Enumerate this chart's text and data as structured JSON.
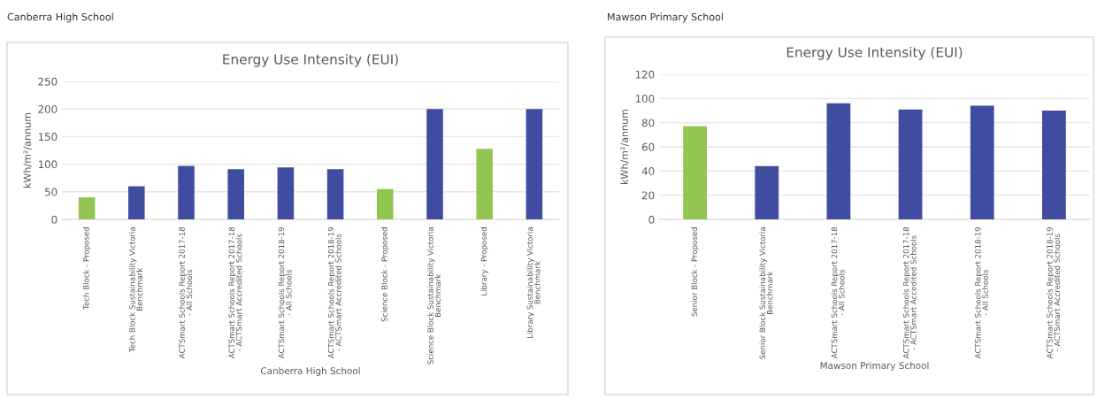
{
  "chart_data": [
    {
      "type": "bar",
      "subtitle": "Canberra High School",
      "title": "Energy Use Intensity (EUI)",
      "xlabel": "Canberra High School",
      "ylabel": "kWh/m²/annum",
      "categories": [
        "Tech Block - Proposed",
        "Tech Block Sustainability Victoria\nBenchmark",
        "ACTSmart Schools Report 2017-18\n- All Schools",
        "ACTSmart Schools Report 2017-18\n- ACTSmart Accredited Schools",
        "ACTSmart Schools Report 2018-19\n- All Schools",
        "ACTSmart Schools Report 2018-19\n- ACTSmart Accredited Schools",
        "Science Block - Proposed",
        "Science Block Sustainability Victoria\nBenchmark",
        "Library - Proposed",
        "Library Sustainability Victoria\nBenchmark"
      ],
      "values": [
        40,
        60,
        97,
        91,
        94,
        91,
        55,
        200,
        128,
        200
      ],
      "colors": [
        "#92c551",
        "#3f4c9f",
        "#3f4c9f",
        "#3f4c9f",
        "#3f4c9f",
        "#3f4c9f",
        "#92c551",
        "#3f4c9f",
        "#92c551",
        "#3f4c9f"
      ],
      "ylim": [
        0,
        250
      ],
      "yticks": [
        0,
        50,
        100,
        150,
        200,
        250
      ],
      "grid": "y",
      "legend": false
    },
    {
      "type": "bar",
      "subtitle": "Mawson Primary School",
      "title": "Energy Use Intensity (EUI)",
      "xlabel": "Mawson Primary School",
      "ylabel": "kWh/m²/annum",
      "categories": [
        "Senior Block - Proposed",
        "Senior Block Sustainability Victoria\nBenchmark",
        "ACTSmart Schools Report 2017-18\n- All Schools",
        "ACTSmart Schools Report 2017-18\n- ACTSmart Accedited Schools",
        "ACTSmart Schools Report 2018-19\n- All Schools",
        "ACTSmart Schools Report 2018-19\n- ACTSmart Accredited Schools"
      ],
      "values": [
        77,
        44,
        96,
        91,
        94,
        90
      ],
      "colors": [
        "#92c551",
        "#3f4c9f",
        "#3f4c9f",
        "#3f4c9f",
        "#3f4c9f",
        "#3f4c9f"
      ],
      "ylim": [
        0,
        120
      ],
      "yticks": [
        0,
        20,
        40,
        60,
        80,
        100,
        120
      ],
      "grid": "y",
      "legend": false
    }
  ]
}
